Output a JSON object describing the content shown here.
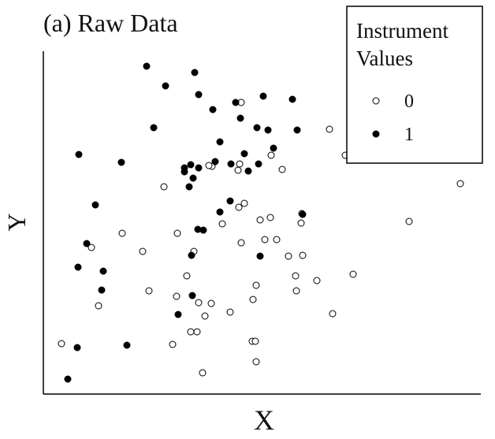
{
  "chart_data": {
    "type": "scatter",
    "title": "(a) Raw Data",
    "x_label": "X",
    "y_label": "Y",
    "xlim": [
      0,
      555
    ],
    "ylim": [
      0,
      435
    ],
    "legend": {
      "title": "Instrument Values",
      "position": "top-right"
    },
    "series": [
      {
        "name": "0",
        "color": "#000000",
        "marker": "open",
        "x": [
          251,
          363,
          383,
          529,
          214,
          210,
          247,
          249,
          289,
          303,
          153,
          255,
          248,
          288,
          275,
          327,
          328,
          464,
          100,
          170,
          227,
          281,
          296,
          251,
          61,
          126,
          191,
          311,
          329,
          393,
          182,
          320,
          347,
          270,
          134,
          169,
          321,
          266,
          197,
          213,
          70,
          237,
          205,
          367,
          187,
          195,
          164,
          23,
          265,
          269,
          270,
          202
        ],
        "values": [
          370,
          336,
          303,
          267,
          289,
          290,
          284,
          292,
          303,
          285,
          263,
          242,
          237,
          224,
          221,
          217,
          229,
          219,
          204,
          204,
          216,
          196,
          196,
          192,
          186,
          181,
          181,
          175,
          176,
          152,
          150,
          150,
          144,
          138,
          131,
          124,
          131,
          120,
          116,
          115,
          112,
          104,
          99,
          102,
          79,
          79,
          63,
          64,
          67,
          67,
          41,
          27
        ]
      },
      {
        "name": "1",
        "color": "#000000",
        "marker": "filled",
        "x": [
          131,
          192,
          155,
          197,
          244,
          279,
          316,
          215,
          250,
          140,
          271,
          285,
          322,
          224,
          292,
          45,
          99,
          255,
          218,
          238,
          273,
          187,
          179,
          197,
          260,
          179,
          190,
          185,
          237,
          224,
          66,
          329,
          196,
          203,
          55,
          188,
          275,
          44,
          76,
          74,
          189,
          171,
          43,
          106,
          31
        ],
        "values": [
          416,
          408,
          391,
          380,
          370,
          378,
          374,
          361,
          350,
          338,
          338,
          335,
          335,
          320,
          312,
          304,
          294,
          305,
          295,
          292,
          292,
          291,
          287,
          287,
          283,
          282,
          274,
          263,
          245,
          231,
          240,
          228,
          209,
          208,
          191,
          176,
          175,
          161,
          156,
          132,
          125,
          101,
          59,
          62,
          19
        ]
      }
    ]
  }
}
